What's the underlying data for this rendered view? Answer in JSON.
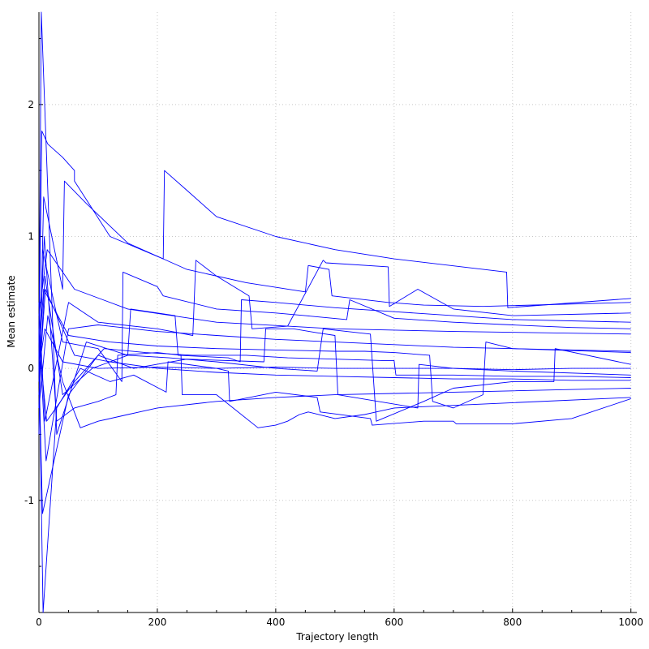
{
  "chart_data": {
    "type": "line",
    "xlabel": "Trajectory length",
    "ylabel": "Mean estimate",
    "xlim": [
      0,
      1010
    ],
    "ylim": [
      -1.85,
      2.7
    ],
    "x_ticks": [
      0,
      200,
      400,
      600,
      800,
      1000
    ],
    "y_ticks": [
      -1,
      0,
      1,
      2
    ],
    "x_tick_labels": [
      "0",
      "200",
      "400",
      "600",
      "800",
      "1000"
    ],
    "y_tick_labels": [
      "-1",
      "0",
      "1",
      "2"
    ],
    "grid": true,
    "line_color": "#0000ff",
    "series": [
      {
        "x": [
          0,
          5,
          15,
          40,
          60,
          60,
          120,
          210,
          212,
          250,
          300,
          400,
          500,
          600,
          790,
          792,
          1000
        ],
        "y": [
          0.1,
          1.8,
          1.7,
          1.6,
          1.5,
          1.42,
          1.0,
          0.83,
          1.5,
          1.35,
          1.15,
          1.0,
          0.9,
          0.83,
          0.73,
          0.46,
          0.53
        ]
      },
      {
        "x": [
          0,
          8,
          40,
          43,
          80,
          150,
          250,
          350,
          450,
          455,
          490,
          495,
          590,
          650,
          750,
          1000
        ],
        "y": [
          -0.3,
          1.3,
          0.6,
          1.42,
          1.25,
          0.95,
          0.75,
          0.65,
          0.58,
          0.78,
          0.75,
          0.55,
          0.5,
          0.48,
          0.47,
          0.5
        ]
      },
      {
        "x": [
          0,
          10,
          50,
          100,
          200,
          260,
          265,
          300,
          355,
          360,
          420,
          480,
          485,
          590,
          592,
          640,
          700,
          800,
          1000
        ],
        "y": [
          0.5,
          -0.4,
          0.5,
          0.35,
          0.3,
          0.25,
          0.82,
          0.7,
          0.55,
          0.3,
          0.32,
          0.82,
          0.8,
          0.77,
          0.47,
          0.6,
          0.45,
          0.4,
          0.42
        ]
      },
      {
        "x": [
          0,
          6,
          40,
          100,
          140,
          142,
          200,
          210,
          300,
          400,
          450,
          520,
          525,
          600,
          700,
          800,
          900,
          1000
        ],
        "y": [
          -0.5,
          0.9,
          0.2,
          0.15,
          -0.1,
          0.73,
          0.62,
          0.55,
          0.45,
          0.42,
          0.4,
          0.37,
          0.52,
          0.38,
          0.35,
          0.33,
          0.31,
          0.3
        ]
      },
      {
        "x": [
          0,
          12,
          50,
          100,
          200,
          300,
          400,
          500,
          600,
          700,
          800,
          1000
        ],
        "y": [
          0.3,
          -0.7,
          0.3,
          0.33,
          0.28,
          0.25,
          0.22,
          0.2,
          0.18,
          0.16,
          0.15,
          0.13
        ]
      },
      {
        "x": [
          0,
          4,
          30,
          80,
          150,
          220,
          300,
          400,
          470,
          480,
          560,
          570,
          650,
          700,
          800,
          870,
          872,
          1000
        ],
        "y": [
          0.2,
          2.7,
          -0.5,
          0.2,
          0.1,
          0.08,
          0.05,
          0.0,
          -0.02,
          0.3,
          0.26,
          -0.4,
          -0.25,
          -0.15,
          -0.1,
          -0.1,
          0.15,
          0.03
        ]
      },
      {
        "x": [
          0,
          10,
          40,
          90,
          150,
          155,
          230,
          235,
          320,
          340,
          342,
          400,
          500,
          600,
          700,
          800,
          1000
        ],
        "y": [
          -0.2,
          0.7,
          -0.2,
          0.0,
          0.1,
          0.45,
          0.4,
          0.1,
          0.08,
          0.05,
          0.52,
          0.5,
          0.46,
          0.43,
          0.4,
          0.37,
          0.35
        ]
      },
      {
        "x": [
          0,
          7,
          30,
          70,
          120,
          160,
          215,
          218,
          300,
          320,
          322,
          400,
          470,
          475,
          560,
          563,
          650,
          700,
          705,
          800,
          900,
          1000
        ],
        "y": [
          0.1,
          -1.85,
          -0.3,
          0.0,
          -0.1,
          -0.05,
          -0.18,
          0.05,
          0.0,
          -0.02,
          -0.25,
          -0.18,
          -0.22,
          -0.33,
          -0.38,
          -0.43,
          -0.4,
          -0.4,
          -0.42,
          -0.42,
          -0.38,
          -0.23
        ]
      },
      {
        "x": [
          0,
          9,
          30,
          60,
          100,
          130,
          133,
          200,
          240,
          242,
          300,
          370,
          400,
          420,
          440,
          455,
          500,
          550,
          600,
          700,
          800,
          1000
        ],
        "y": [
          0.0,
          1.0,
          -0.4,
          -0.3,
          -0.25,
          -0.2,
          0.1,
          0.12,
          0.1,
          -0.2,
          -0.2,
          -0.45,
          -0.43,
          -0.4,
          -0.35,
          -0.33,
          -0.38,
          -0.35,
          -0.3,
          -0.28,
          -0.26,
          -0.22
        ]
      },
      {
        "x": [
          0,
          11,
          60,
          120,
          200,
          300,
          400,
          500,
          600,
          700,
          800,
          900,
          1000
        ],
        "y": [
          -0.1,
          0.6,
          0.1,
          0.05,
          0.0,
          -0.03,
          -0.05,
          -0.06,
          -0.07,
          -0.08,
          -0.08,
          -0.09,
          -0.09
        ]
      },
      {
        "x": [
          0,
          14,
          60,
          150,
          300,
          500,
          700,
          1000
        ],
        "y": [
          0.4,
          0.9,
          0.6,
          0.45,
          0.35,
          0.3,
          0.28,
          0.26
        ]
      },
      {
        "x": [
          0,
          6,
          50,
          100,
          160,
          250,
          380,
          383,
          430,
          470,
          500,
          505,
          640,
          642,
          700,
          800,
          1000
        ],
        "y": [
          0.0,
          -1.1,
          -0.2,
          0.1,
          0.0,
          0.07,
          0.05,
          0.3,
          0.3,
          0.27,
          0.25,
          -0.2,
          -0.3,
          0.03,
          0.0,
          -0.02,
          -0.05
        ]
      },
      {
        "x": [
          0,
          13,
          60,
          110,
          180,
          260,
          350,
          420,
          500,
          580,
          600,
          603,
          700,
          800,
          900,
          1000
        ],
        "y": [
          0.2,
          -0.4,
          -0.1,
          0.15,
          0.12,
          0.1,
          0.1,
          0.08,
          0.07,
          0.06,
          0.06,
          -0.05,
          -0.05,
          -0.06,
          -0.06,
          -0.07
        ]
      },
      {
        "x": [
          0,
          8,
          50,
          120,
          200,
          300,
          400,
          500,
          550,
          600,
          660,
          665,
          700,
          750,
          755,
          800,
          1000
        ],
        "y": [
          0.1,
          0.6,
          0.25,
          0.2,
          0.17,
          0.15,
          0.14,
          0.13,
          0.13,
          0.12,
          0.1,
          -0.25,
          -0.3,
          -0.2,
          0.2,
          0.15,
          0.12
        ]
      },
      {
        "x": [
          0,
          15,
          40,
          70,
          100,
          150,
          200,
          300,
          400,
          500,
          600,
          700,
          800,
          1000
        ],
        "y": [
          -0.3,
          0.4,
          -0.1,
          -0.45,
          -0.4,
          -0.35,
          -0.3,
          -0.25,
          -0.22,
          -0.2,
          -0.19,
          -0.18,
          -0.17,
          -0.15
        ]
      },
      {
        "x": [
          0,
          10,
          40,
          100,
          200,
          300,
          400,
          500,
          600,
          700,
          800,
          900,
          1000
        ],
        "y": [
          0.0,
          0.3,
          0.05,
          0.0,
          0.01,
          0.0,
          0.01,
          0.0,
          0.0,
          0.0,
          -0.01,
          0.0,
          0.0
        ]
      }
    ]
  }
}
